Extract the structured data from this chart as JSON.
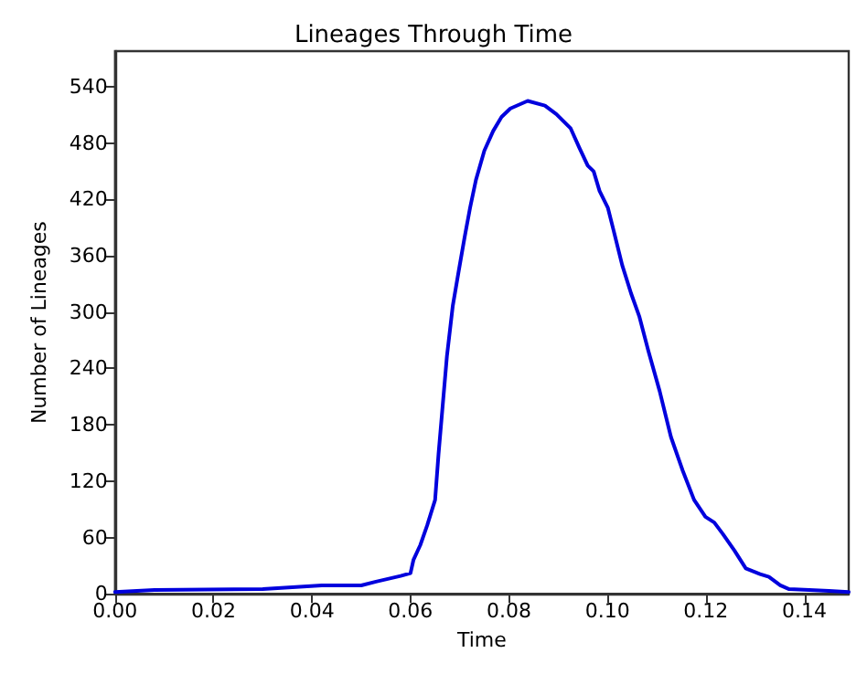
{
  "chart_data": {
    "type": "line",
    "title": "Lineages Through Time",
    "xlabel": "Time",
    "ylabel": "Number of Lineages",
    "x": [
      0,
      0.008,
      0.03,
      0.039,
      0.042,
      0.05,
      0.053,
      0.058,
      0.06,
      0.0606,
      0.062,
      0.0634,
      0.065,
      0.0657,
      0.0665,
      0.0674,
      0.0686,
      0.0698,
      0.071,
      0.0721,
      0.0733,
      0.075,
      0.0768,
      0.0785,
      0.0803,
      0.0838,
      0.0873,
      0.0896,
      0.0925,
      0.0943,
      0.096,
      0.0972,
      0.0984,
      0.1001,
      0.1013,
      0.103,
      0.1048,
      0.1065,
      0.1083,
      0.1106,
      0.1129,
      0.1153,
      0.1176,
      0.1199,
      0.1217,
      0.1234,
      0.1258,
      0.1281,
      0.131,
      0.1328,
      0.1351,
      0.1369,
      0.141,
      0.145,
      0.149
    ],
    "series": [
      {
        "color": "#0000dd",
        "values": [
          2,
          4,
          5,
          8,
          9,
          9,
          13,
          19,
          22,
          36,
          52,
          73,
          100,
          149,
          198,
          253,
          307,
          344,
          380,
          411,
          441,
          472,
          493,
          508,
          517,
          525,
          520,
          511,
          496,
          475,
          456,
          450,
          429,
          411,
          386,
          350,
          320,
          295,
          259,
          216,
          167,
          131,
          100,
          82,
          76,
          64,
          46,
          27,
          21,
          18,
          9,
          5,
          4,
          3,
          2
        ]
      }
    ],
    "xlim": [
      0,
      0.149
    ],
    "ylim": [
      0,
      578
    ],
    "xticks": [
      {
        "value": 0,
        "label": "0.00"
      },
      {
        "value": 0.02,
        "label": "0.02"
      },
      {
        "value": 0.04,
        "label": "0.04"
      },
      {
        "value": 0.06,
        "label": "0.06"
      },
      {
        "value": 0.08,
        "label": "0.08"
      },
      {
        "value": 0.1,
        "label": "0.10"
      },
      {
        "value": 0.12,
        "label": "0.12"
      },
      {
        "value": 0.14,
        "label": "0.14"
      }
    ],
    "yticks": [
      0,
      60,
      120,
      180,
      240,
      300,
      360,
      420,
      480,
      540
    ],
    "grid": false,
    "marker": "none",
    "line_style": "solid"
  }
}
